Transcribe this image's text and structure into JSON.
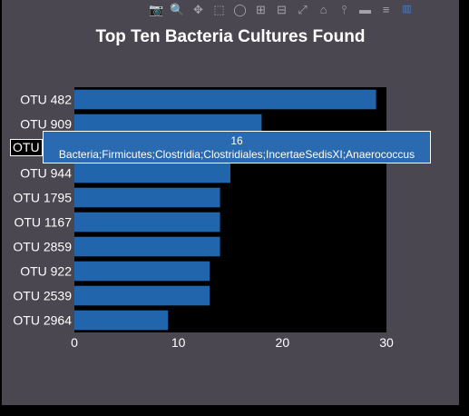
{
  "modebar": {
    "icons": [
      "camera-icon",
      "zoom-icon",
      "pan-icon",
      "box-select-icon",
      "lasso-icon",
      "zoom-in-icon",
      "zoom-out-icon",
      "autoscale-icon",
      "reset-axes-icon",
      "spike-lines-icon",
      "hover-closest-icon",
      "hover-compare-icon",
      "plotly-logo-icon"
    ],
    "glyphs": [
      "📷",
      "🔍",
      "✥",
      "⬚",
      "◯",
      "⊞",
      "⊟",
      "⤢",
      "⌂",
      "⫯",
      "▬",
      "≡",
      "▥"
    ]
  },
  "chart_data": {
    "type": "bar",
    "orientation": "horizontal",
    "title": "Top Ten Bacteria Cultures Found",
    "categories": [
      "OTU 482",
      "OTU 909",
      "OTU 2",
      "OTU 944",
      "OTU 1795",
      "OTU 1167",
      "OTU 2859",
      "OTU 922",
      "OTU 2539",
      "OTU 2964"
    ],
    "values": [
      29,
      18,
      16,
      15,
      14,
      14,
      14,
      13,
      13,
      9
    ],
    "xlim": [
      0,
      30
    ],
    "xticks": [
      0,
      10,
      20,
      30
    ],
    "grid": false,
    "colors": {
      "bar": "#2166ac",
      "plot_bg": "#000000",
      "paper_bg": "#4b4751"
    }
  },
  "hover": {
    "tag": "OTU 2",
    "value": "16",
    "label": "Bacteria;Firmicutes;Clostridia;Clostridiales;IncertaeSedisXI;Anaerococcus"
  }
}
